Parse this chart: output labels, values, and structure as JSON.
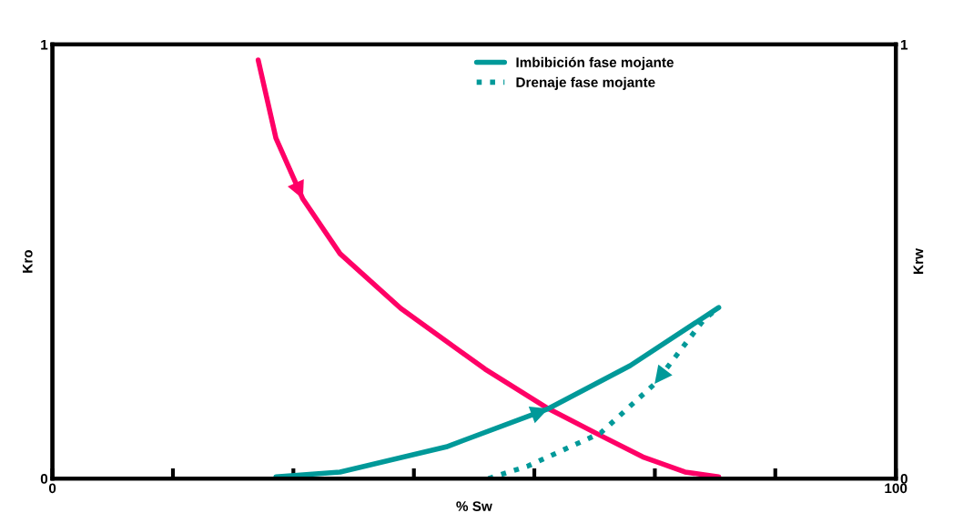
{
  "chart_data": {
    "type": "line",
    "xlabel": "% Sw",
    "ylabel": "Kro",
    "y2label": "Krw",
    "xlim": [
      0,
      100
    ],
    "xticks": [
      0,
      {
        "value": 14.29,
        "label": null
      },
      {
        "value": 28.57,
        "label": null
      },
      {
        "value": 42.86,
        "label": null
      },
      {
        "value": 57.14,
        "label": null
      },
      {
        "value": 71.43,
        "label": null
      },
      {
        "value": 85.71,
        "label": null
      },
      100
    ],
    "ylim": [
      0,
      1
    ],
    "yticks": [
      0,
      1
    ],
    "y2lim": [
      0,
      1
    ],
    "y2ticks": [
      0,
      1
    ],
    "grid": false,
    "legend": "top",
    "marker": "none",
    "series": [
      {
        "color": "#ff0066",
        "line_style": "solid",
        "x": [
          24.4,
          26.5,
          29.7,
          34.1,
          41.3,
          51.3,
          58.8,
          65.0,
          70.0,
          75.0,
          79.0
        ],
        "values": [
          0.964,
          0.784,
          0.644,
          0.518,
          0.392,
          0.252,
          0.161,
          0.099,
          0.05,
          0.015,
          0.004
        ]
      },
      {
        "name": "Imbibición fase mojante",
        "color": "#009999",
        "line_style": "solid",
        "x": [
          26.5,
          34.1,
          46.7,
          58.8,
          68.5,
          79.0
        ],
        "values": [
          0.004,
          0.015,
          0.073,
          0.161,
          0.26,
          0.394
        ]
      },
      {
        "name": "Drenaje fase mojante",
        "color": "#009999",
        "line_style": "dotted",
        "x": [
          51.7,
          56.4,
          65.0,
          71.4,
          77.2,
          79.0
        ],
        "values": [
          0.0,
          0.029,
          0.105,
          0.218,
          0.365,
          0.394
        ]
      }
    ]
  }
}
